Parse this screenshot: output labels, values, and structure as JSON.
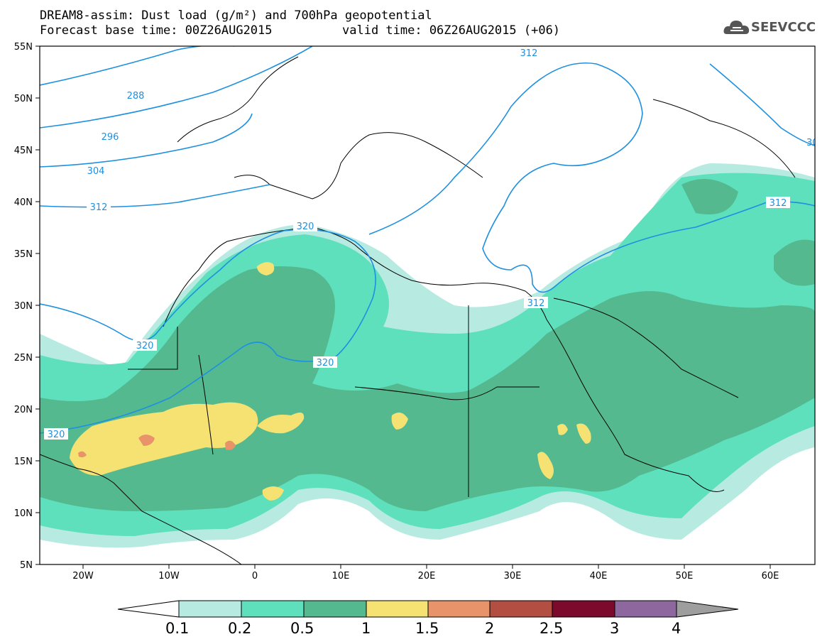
{
  "header": {
    "line1": "DREAM8-assim: Dust load (g/m²) and 700hPa geopotential",
    "line2_base": "Forecast base time: 00Z26AUG2015",
    "line2_valid": "valid time: 06Z26AUG2015 (+06)"
  },
  "logo": {
    "text": "SEEVCCC",
    "icon": "cloud-icon"
  },
  "axes": {
    "lat_labels": [
      "55N",
      "50N",
      "45N",
      "40N",
      "35N",
      "30N",
      "25N",
      "20N",
      "15N",
      "10N",
      "5N"
    ],
    "lon_labels": [
      "20W",
      "10W",
      "0",
      "10E",
      "20E",
      "30E",
      "40E",
      "50E",
      "60E"
    ],
    "lat_range": [
      5,
      55
    ],
    "lon_range": [
      -25,
      65
    ]
  },
  "contours": {
    "labels": [
      "288",
      "296",
      "304",
      "312",
      "312",
      "312",
      "312",
      "320",
      "320",
      "320",
      "320",
      "30"
    ],
    "color": "#1e90e0"
  },
  "colorbar": {
    "labels": [
      "0.1",
      "0.2",
      "0.5",
      "1",
      "1.5",
      "2",
      "2.5",
      "3",
      "4"
    ],
    "colors": [
      "#b7ebe2",
      "#5ee0bc",
      "#55b990",
      "#f5e272",
      "#e9936a",
      "#b24e42",
      "#7c0a2c",
      "#8e679f",
      "#9e9e9e"
    ]
  }
}
